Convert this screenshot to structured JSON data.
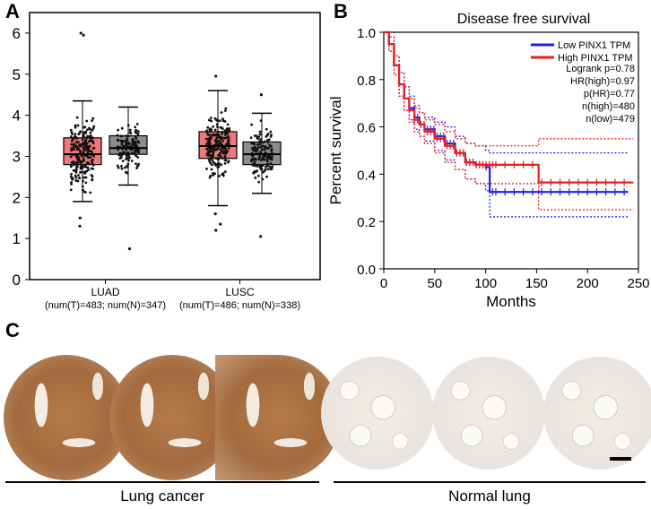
{
  "panels": {
    "a": "A",
    "b": "B",
    "c": "C"
  },
  "chart_data": [
    {
      "type": "box",
      "panel": "A",
      "ylim": [
        0,
        6.5
      ],
      "yticks": [
        0,
        1,
        2,
        3,
        4,
        5,
        6
      ],
      "groups": [
        {
          "name": "LUAD",
          "caption": "(num(T)=483; num(N)=347)",
          "boxes": [
            {
              "kind": "tumor",
              "color": "#f07878",
              "min": 1.9,
              "q1": 2.8,
              "median": 3.05,
              "q3": 3.45,
              "max": 4.35,
              "outliers": [
                5.95,
                6.0,
                1.3,
                1.5
              ]
            },
            {
              "kind": "normal",
              "color": "#8c8c8c",
              "min": 2.3,
              "q1": 3.05,
              "median": 3.2,
              "q3": 3.5,
              "max": 4.2,
              "outliers": [
                0.75
              ]
            }
          ]
        },
        {
          "name": "LUSC",
          "caption": "(num(T)=486; num(N)=338)",
          "boxes": [
            {
              "kind": "tumor",
              "color": "#f07878",
              "min": 1.8,
              "q1": 2.95,
              "median": 3.25,
              "q3": 3.6,
              "max": 4.6,
              "outliers": [
                4.95,
                1.2,
                1.35,
                1.6
              ]
            },
            {
              "kind": "normal",
              "color": "#8c8c8c",
              "min": 2.1,
              "q1": 2.8,
              "median": 3.05,
              "q3": 3.35,
              "max": 4.05,
              "outliers": [
                4.5,
                1.05
              ]
            }
          ]
        }
      ]
    },
    {
      "type": "line",
      "panel": "B",
      "title": "Disease free survival",
      "xlabel": "Months",
      "ylabel": "Percent survival",
      "xlim": [
        0,
        250
      ],
      "ylim": [
        0,
        1.0
      ],
      "xticks": [
        0,
        50,
        100,
        150,
        200,
        250
      ],
      "yticks": [
        "0.0",
        "0.2",
        "0.4",
        "0.6",
        "0.8",
        "1.0"
      ],
      "series": [
        {
          "name": "Low PINX1 TPM",
          "color": "#1f1fe6",
          "x": [
            0,
            5,
            10,
            15,
            20,
            25,
            30,
            35,
            40,
            50,
            60,
            70,
            80,
            90,
            100,
            104,
            110,
            150,
            200,
            240
          ],
          "y": [
            1.0,
            0.95,
            0.86,
            0.78,
            0.72,
            0.68,
            0.64,
            0.61,
            0.59,
            0.56,
            0.53,
            0.49,
            0.45,
            0.44,
            0.43,
            0.325,
            0.325,
            0.325,
            0.325,
            0.325
          ],
          "ci_upper": [
            1.0,
            0.98,
            0.9,
            0.83,
            0.77,
            0.73,
            0.69,
            0.66,
            0.64,
            0.62,
            0.6,
            0.56,
            0.53,
            0.52,
            0.5,
            0.49,
            0.49,
            0.49,
            0.49,
            0.49
          ],
          "ci_lower": [
            1.0,
            0.92,
            0.82,
            0.73,
            0.67,
            0.63,
            0.59,
            0.56,
            0.54,
            0.5,
            0.46,
            0.42,
            0.38,
            0.36,
            0.33,
            0.22,
            0.22,
            0.22,
            0.22,
            0.22
          ]
        },
        {
          "name": "High PINX1 TPM",
          "color": "#e61f1f",
          "x": [
            0,
            5,
            10,
            15,
            20,
            25,
            30,
            35,
            40,
            50,
            60,
            70,
            80,
            90,
            100,
            120,
            150,
            152,
            200,
            245
          ],
          "y": [
            1.0,
            0.95,
            0.86,
            0.78,
            0.72,
            0.67,
            0.63,
            0.61,
            0.58,
            0.55,
            0.52,
            0.49,
            0.45,
            0.44,
            0.44,
            0.44,
            0.44,
            0.365,
            0.365,
            0.365
          ],
          "ci_upper": [
            1.0,
            0.98,
            0.9,
            0.83,
            0.77,
            0.72,
            0.68,
            0.66,
            0.63,
            0.61,
            0.58,
            0.55,
            0.53,
            0.52,
            0.52,
            0.52,
            0.52,
            0.55,
            0.55,
            0.55
          ],
          "ci_lower": [
            1.0,
            0.92,
            0.82,
            0.73,
            0.67,
            0.62,
            0.58,
            0.56,
            0.53,
            0.49,
            0.45,
            0.42,
            0.38,
            0.36,
            0.36,
            0.36,
            0.36,
            0.25,
            0.25,
            0.25
          ]
        }
      ],
      "stats": [
        "Logrank p=0.78",
        "HR(high)=0.97",
        "p(HR)=0.77",
        "n(high)=480",
        "n(low)=479"
      ],
      "legend_position": "top-right"
    }
  ],
  "histology": {
    "left_label": "Lung cancer",
    "right_label": "Normal lung"
  }
}
